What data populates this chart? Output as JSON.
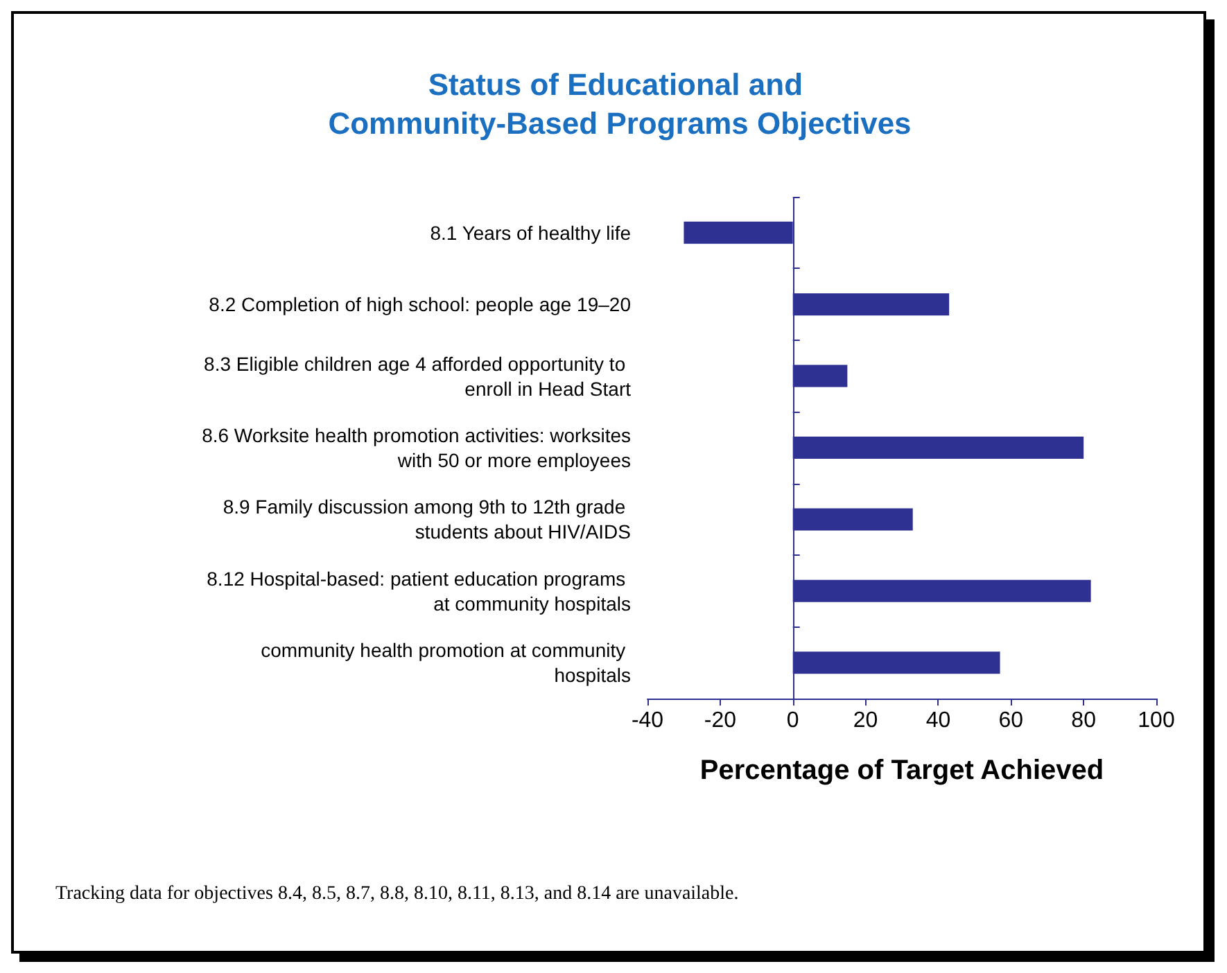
{
  "chart_data": {
    "type": "bar",
    "orientation": "horizontal",
    "title": "Status of Educational and Community-Based Programs Objectives",
    "xlabel": "Percentage of Target Achieved",
    "categories": [
      "8.1 Years of healthy life",
      "8.2 Completion of high school: people age 19–20",
      "8.3 Eligible children age 4 afforded opportunity to enroll in Head Start",
      "8.6 Worksite health promotion activities: worksites with 50 or more employees",
      "8.9 Family discussion among 9th to 12th grade students about HIV/AIDS",
      "8.12 Hospital-based: patient education programs at community hospitals",
      "community health promotion at community hospitals"
    ],
    "values": [
      -30,
      43,
      15,
      80,
      33,
      82,
      57
    ],
    "color": "#2e3192",
    "ref_lines": [
      {
        "axis": "x",
        "value": 0
      }
    ],
    "xlim": [
      -40,
      100
    ],
    "xticks": [
      -40,
      -20,
      0,
      20,
      40,
      60,
      80,
      100
    ],
    "grid": false,
    "annotations": [
      "Tracking data for objectives 8.4, 8.5, 8.7, 8.8, 8.10, 8.11, 8.13, and 8.14 are unavailable."
    ]
  }
}
